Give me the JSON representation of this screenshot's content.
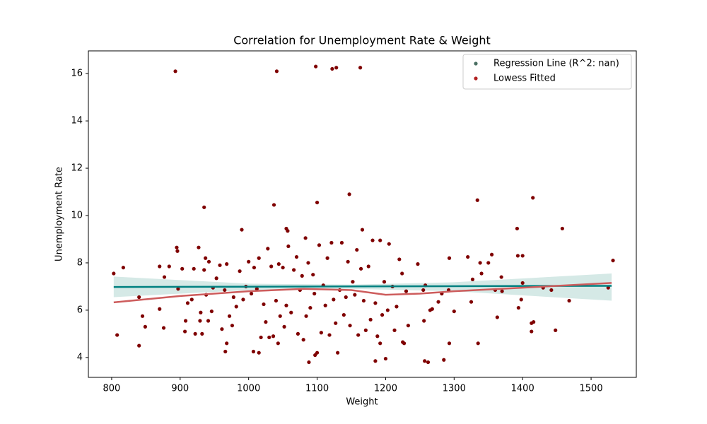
{
  "chart_data": {
    "type": "scatter",
    "title": "Correlation for Unemployment Rate & Weight",
    "x_label": "Weight",
    "y_label": "Unemployment Rate",
    "xlim": [
      766,
      1566
    ],
    "ylim": [
      3.16,
      16.96
    ],
    "xticks": [
      800,
      900,
      1000,
      1100,
      1200,
      1300,
      1400,
      1500
    ],
    "yticks": [
      4,
      6,
      8,
      10,
      12,
      14,
      16
    ],
    "legend": "upper right",
    "points": {
      "color": "#7f0000",
      "x": [
        893,
        1041,
        1098,
        1122,
        1128,
        1163,
        1147,
        1100,
        1037,
        935,
        1334,
        1415,
        1458,
        1392,
        1055,
        1057,
        1166,
        1083,
        990,
        1088,
        1097,
        1100,
        1185,
        1200,
        1257,
        1262,
        1285,
        840,
        808,
        1007,
        1015,
        1130,
        1043,
        1227,
        1293,
        1335,
        1192,
        1225,
        968,
        966,
        1413,
        1448,
        1413,
        1416,
        1468,
        1398,
        1394,
        1442,
        1430,
        1400,
        1369,
        1340,
        1350,
        1355,
        1393,
        1400,
        1320,
        1293,
        1338,
        1327,
        1360,
        1370,
        1363,
        1325,
        1300,
        1292,
        1282,
        1265,
        1268,
        1277,
        1256,
        1255,
        1258,
        1247,
        1233,
        1525,
        1532,
        803,
        817,
        840,
        845,
        849,
        870,
        870,
        876,
        877,
        884,
        895,
        896,
        897,
        903,
        907,
        908,
        911,
        917,
        920,
        922,
        927,
        929,
        930,
        932,
        935,
        937,
        938,
        941,
        942,
        946,
        948,
        953,
        958,
        961,
        965,
        968,
        972,
        976,
        978,
        982,
        987,
        992,
        996,
        1000,
        1004,
        1008,
        1012,
        1015,
        1018,
        1022,
        1025,
        1028,
        1030,
        1033,
        1036,
        1040,
        1044,
        1046,
        1050,
        1052,
        1055,
        1058,
        1062,
        1066,
        1070,
        1072,
        1075,
        1078,
        1080,
        1084,
        1087,
        1090,
        1094,
        1096,
        1103,
        1106,
        1109,
        1112,
        1115,
        1118,
        1121,
        1124,
        1127,
        1133,
        1136,
        1139,
        1142,
        1145,
        1148,
        1152,
        1155,
        1158,
        1160,
        1164,
        1168,
        1171,
        1175,
        1178,
        1181,
        1185,
        1188,
        1192,
        1195,
        1198,
        1203,
        1205,
        1210,
        1213,
        1216,
        1220,
        1224,
        1230
      ],
      "y": [
        16.1,
        16.1,
        16.3,
        16.2,
        16.25,
        16.25,
        10.9,
        10.55,
        10.45,
        10.35,
        10.65,
        10.75,
        9.45,
        9.45,
        9.45,
        9.35,
        9.4,
        9.05,
        9.4,
        3.8,
        4.1,
        4.2,
        3.85,
        3.95,
        3.85,
        3.8,
        3.9,
        4.5,
        4.95,
        4.25,
        4.2,
        4.2,
        4.6,
        4.6,
        4.6,
        4.6,
        4.6,
        4.65,
        4.6,
        4.25,
        5.1,
        5.15,
        5.45,
        5.5,
        6.4,
        6.45,
        6.1,
        6.85,
        6.95,
        7.15,
        7.4,
        7.55,
        8.0,
        8.35,
        8.3,
        8.3,
        8.25,
        8.2,
        8.0,
        7.3,
        6.85,
        6.8,
        5.7,
        6.35,
        5.95,
        6.85,
        6.7,
        6.0,
        6.05,
        6.35,
        5.55,
        6.85,
        7.05,
        7.95,
        5.35,
        6.95,
        8.1,
        7.55,
        7.8,
        6.55,
        5.75,
        5.3,
        6.05,
        7.85,
        5.25,
        7.4,
        7.85,
        8.65,
        8.5,
        6.9,
        7.75,
        5.1,
        5.55,
        6.3,
        6.45,
        7.75,
        5.0,
        8.65,
        5.55,
        5.9,
        5.0,
        7.7,
        8.2,
        6.65,
        5.55,
        8.05,
        5.95,
        6.95,
        7.35,
        7.9,
        5.2,
        6.85,
        7.95,
        5.75,
        5.35,
        6.55,
        6.15,
        7.65,
        6.45,
        7.0,
        8.05,
        6.7,
        7.8,
        6.9,
        8.2,
        4.85,
        6.25,
        5.5,
        8.6,
        4.85,
        7.85,
        4.9,
        6.4,
        7.95,
        5.75,
        7.8,
        5.3,
        6.2,
        8.7,
        5.9,
        7.7,
        8.25,
        5.0,
        6.85,
        7.45,
        4.75,
        5.75,
        8.0,
        6.1,
        7.5,
        6.7,
        8.75,
        5.05,
        7.05,
        6.2,
        8.2,
        4.95,
        8.85,
        6.45,
        5.45,
        6.85,
        8.85,
        5.8,
        6.55,
        8.05,
        5.35,
        7.2,
        6.65,
        8.55,
        4.95,
        7.75,
        6.4,
        5.15,
        7.85,
        5.6,
        8.95,
        6.3,
        4.9,
        8.95,
        5.8,
        7.2,
        6.0,
        8.8,
        7.0,
        5.15,
        6.15,
        8.15,
        7.55,
        6.8
      ]
    },
    "band": {
      "color": "#d5e9e6",
      "x": [
        803,
        1000,
        1150,
        1300,
        1530
      ],
      "lower": [
        6.55,
        6.85,
        6.9,
        6.8,
        6.4
      ],
      "upper": [
        7.42,
        7.12,
        7.08,
        7.18,
        7.55
      ]
    },
    "series": [
      {
        "name": "Regression Line (R^2: nan)",
        "color": "#008080",
        "marker_color": "#4a6f63",
        "x": [
          803,
          1530
        ],
        "values": [
          6.98,
          7.03
        ]
      },
      {
        "name": "Lowess Fitted",
        "color": "#cd5c5c",
        "marker_color": "#b22222",
        "x": [
          803,
          900,
          1000,
          1080,
          1150,
          1200,
          1250,
          1300,
          1400,
          1530
        ],
        "values": [
          6.33,
          6.6,
          6.8,
          6.9,
          6.85,
          6.65,
          6.7,
          6.8,
          6.95,
          7.15
        ]
      }
    ]
  }
}
